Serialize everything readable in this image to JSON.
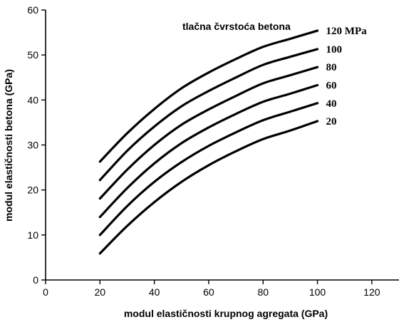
{
  "chart_data": {
    "type": "line",
    "title": "",
    "xlabel": "modul elastičnosti krupnog agregata (GPa)",
    "ylabel": "modul elastičnosti betona (GPa)",
    "xlim": [
      0,
      130
    ],
    "ylim": [
      0,
      60
    ],
    "x_ticks": [
      "0",
      "20",
      "40",
      "60",
      "80",
      "100",
      "120"
    ],
    "y_ticks": [
      "0",
      "10",
      "20",
      "30",
      "40",
      "50",
      "60"
    ],
    "grid": false,
    "legend": {
      "title": "tlačna čvrstoća betona",
      "placement": "top-right"
    },
    "x": [
      20,
      30,
      40,
      50,
      60,
      70,
      80,
      90,
      100
    ],
    "series": [
      {
        "name": "120 MPa",
        "values": [
          26.3,
          32.6,
          38.0,
          42.6,
          46.1,
          49.1,
          51.8,
          53.6,
          55.4
        ]
      },
      {
        "name": "100",
        "values": [
          22.2,
          28.7,
          34.1,
          38.6,
          42.0,
          45.0,
          47.8,
          49.6,
          51.3
        ]
      },
      {
        "name": "80",
        "values": [
          18.1,
          24.5,
          30.0,
          34.5,
          37.9,
          40.9,
          43.7,
          45.5,
          47.3
        ]
      },
      {
        "name": "60",
        "values": [
          14.0,
          20.4,
          25.9,
          30.4,
          33.9,
          36.9,
          39.6,
          41.4,
          43.3
        ]
      },
      {
        "name": "40",
        "values": [
          10.0,
          16.4,
          21.8,
          26.2,
          29.8,
          32.8,
          35.5,
          37.4,
          39.3
        ]
      },
      {
        "name": "20",
        "values": [
          5.9,
          12.0,
          17.3,
          21.8,
          25.5,
          28.6,
          31.3,
          33.2,
          35.3
        ]
      }
    ]
  }
}
